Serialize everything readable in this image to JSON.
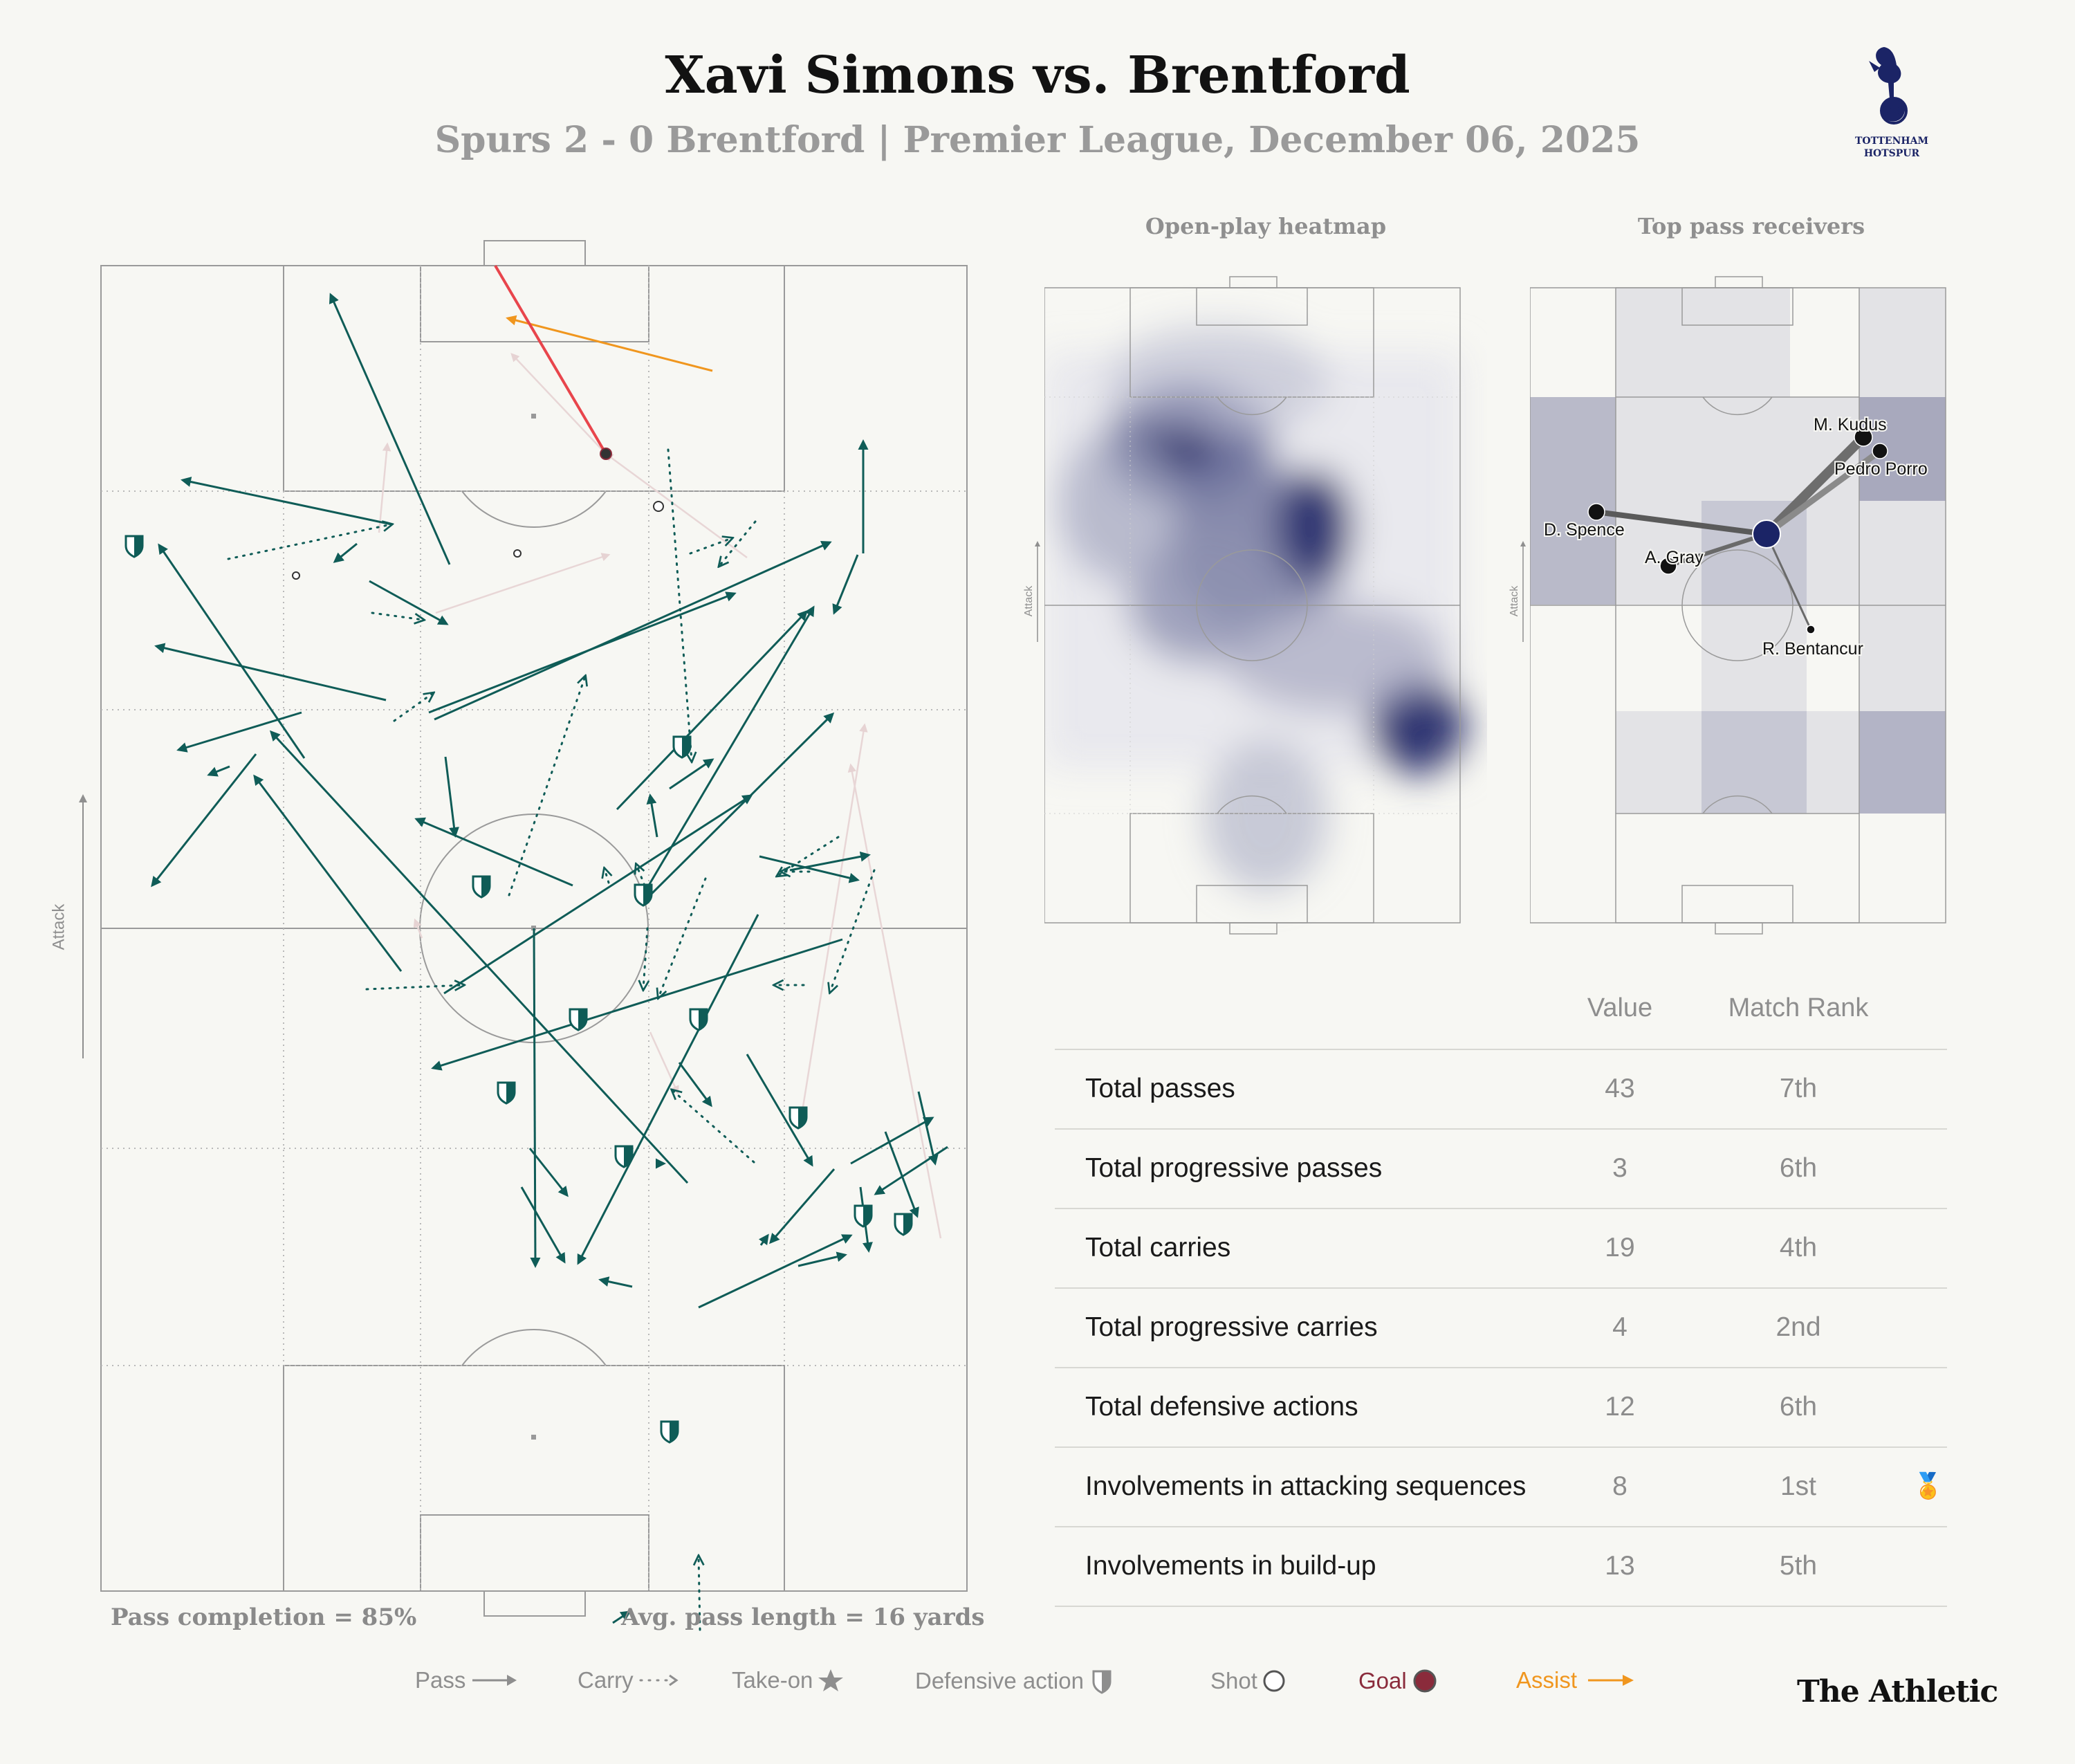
{
  "header": {
    "title": "Xavi Simons vs. Brentford",
    "subtitle": "Spurs 2 - 0 Brentford | Premier League, December 06, 2025",
    "crest_text_1": "TOTTENHAM",
    "crest_text_2": "HOTSPUR"
  },
  "panels": {
    "heatmap_title": "Open-play heatmap",
    "receivers_title": "Top pass receivers",
    "attack_label": "Attack"
  },
  "main_pitch": {
    "attack_label": "Attack",
    "pass_completion": "Pass completion = 85%",
    "avg_pass_length": "Avg. pass length = 16 yards"
  },
  "receivers": [
    {
      "name": "M. Kudus"
    },
    {
      "name": "Pedro Porro"
    },
    {
      "name": "D. Spence"
    },
    {
      "name": "A. Gray"
    },
    {
      "name": "R. Bentancur"
    }
  ],
  "stats": {
    "col_value": "Value",
    "col_rank": "Match Rank",
    "rows": [
      {
        "label": "Total passes",
        "value": "43",
        "rank": "7th"
      },
      {
        "label": "Total progressive passes",
        "value": "3",
        "rank": "6th"
      },
      {
        "label": "Total carries",
        "value": "19",
        "rank": "4th"
      },
      {
        "label": "Total progressive carries",
        "value": "4",
        "rank": "2nd"
      },
      {
        "label": "Total defensive actions",
        "value": "12",
        "rank": "6th"
      },
      {
        "label": "Involvements in attacking sequences",
        "value": "8",
        "rank": "1st",
        "medal": true
      },
      {
        "label": "Involvements in build-up",
        "value": "13",
        "rank": "5th"
      }
    ]
  },
  "legend": {
    "pass": "Pass",
    "carry": "Carry",
    "takeon": "Take-on",
    "defensive": "Defensive action",
    "shot": "Shot",
    "goal": "Goal",
    "assist": "Assist"
  },
  "brand": "The Athletic",
  "colors": {
    "pass": "#0f5c57",
    "assist": "#f0961e",
    "goal_line": "#e8454c",
    "goal": "#8a2b3b",
    "heat": "#1b2466",
    "background": "#f7f7f3"
  }
}
